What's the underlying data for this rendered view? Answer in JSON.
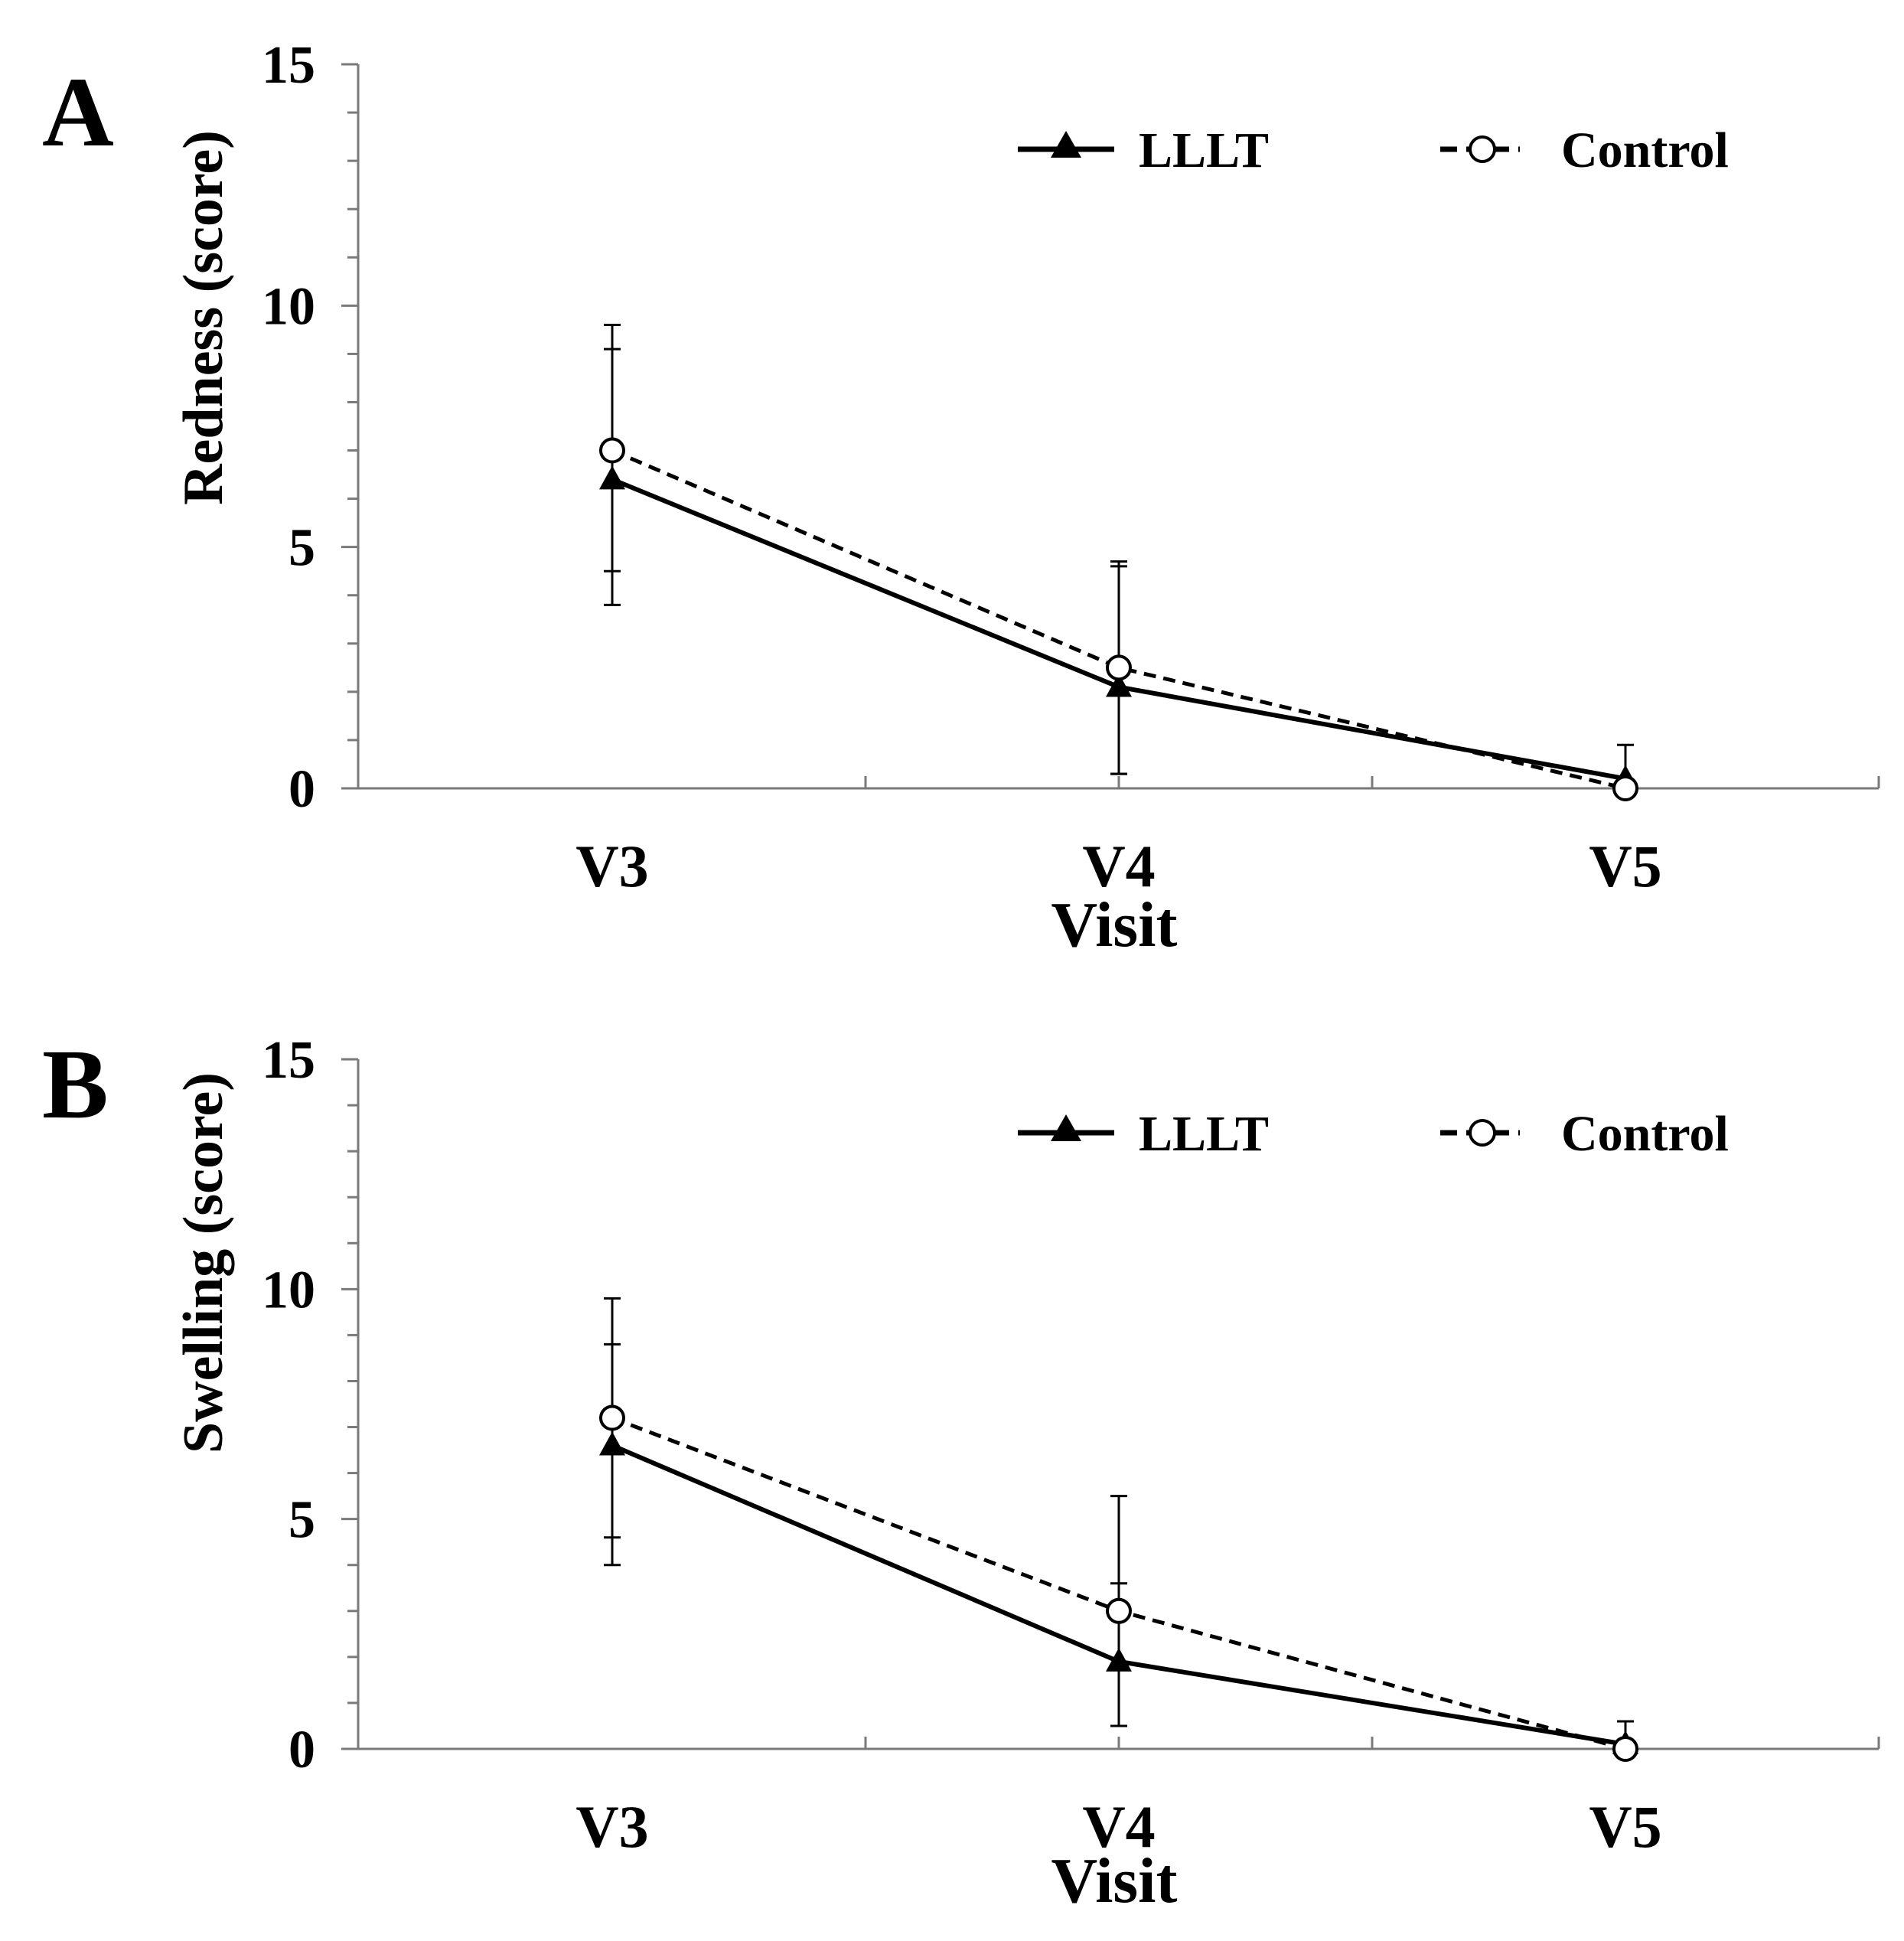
{
  "figure": {
    "colors": {
      "line": "#000000",
      "axis": "#7a7a7a",
      "marker_fill_open": "#ffffff",
      "background": "#ffffff"
    }
  },
  "chart_data": [
    {
      "panel_label": "A",
      "type": "line",
      "title": "",
      "xlabel": "Visit",
      "ylabel": "Redness (score)",
      "categories": [
        "V3",
        "V4",
        "V5"
      ],
      "ylim": [
        0,
        15
      ],
      "yticks": [
        "0",
        "5",
        "10",
        "15"
      ],
      "grid": false,
      "legend_position": "top-right",
      "series": [
        {
          "name": "LLLT",
          "style": "solid",
          "marker": "filled-triangle",
          "values": [
            6.4,
            2.1,
            0.2
          ],
          "error_upper": [
            9.1,
            4.6,
            0.9
          ],
          "error_lower": [
            3.8,
            0.3,
            0.0
          ]
        },
        {
          "name": "Control",
          "style": "dashed",
          "marker": "open-circle",
          "values": [
            7.0,
            2.5,
            0.0
          ],
          "error_upper": [
            9.6,
            4.7,
            0.0
          ],
          "error_lower": [
            4.5,
            0.3,
            0.0
          ]
        }
      ]
    },
    {
      "panel_label": "B",
      "type": "line",
      "title": "",
      "xlabel": "Visit",
      "ylabel": "Swelling (score)",
      "categories": [
        "V3",
        "V4",
        "V5"
      ],
      "ylim": [
        0,
        15
      ],
      "yticks": [
        "0",
        "5",
        "10",
        "15"
      ],
      "grid": false,
      "legend_position": "top-right",
      "series": [
        {
          "name": "LLLT",
          "style": "solid",
          "marker": "filled-triangle",
          "values": [
            6.6,
            1.9,
            0.1
          ],
          "error_upper": [
            8.8,
            3.6,
            0.6
          ],
          "error_lower": [
            4.0,
            0.5,
            0.0
          ]
        },
        {
          "name": "Control",
          "style": "dashed",
          "marker": "open-circle",
          "values": [
            7.2,
            3.0,
            0.0
          ],
          "error_upper": [
            9.8,
            5.5,
            0.0
          ],
          "error_lower": [
            4.6,
            0.5,
            0.0
          ]
        }
      ]
    }
  ]
}
